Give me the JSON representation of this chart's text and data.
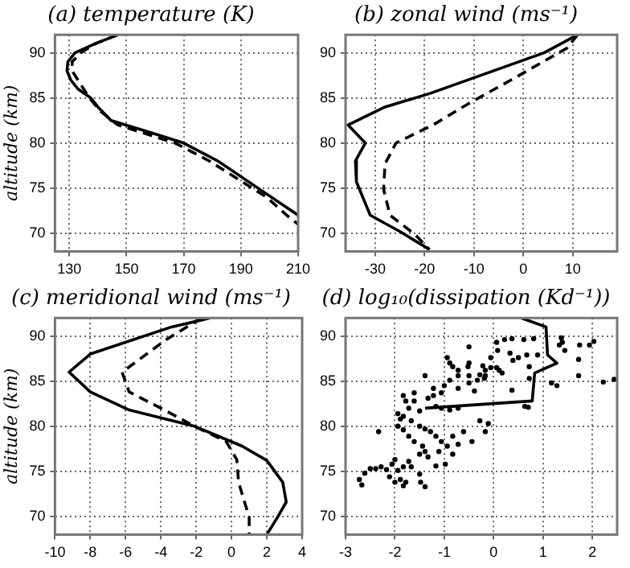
{
  "chart_data": [
    {
      "type": "line",
      "title": "(a) temperature (K)",
      "ylabel": "altitude (km)",
      "xlim": [
        125,
        210
      ],
      "xticks": [
        130,
        150,
        170,
        190,
        210
      ],
      "ylim": [
        68,
        92
      ],
      "yticks": [
        70,
        75,
        80,
        85,
        90
      ],
      "grid": true,
      "series": [
        {
          "type": "line",
          "color": "#000000",
          "line_style": "solid",
          "marker": "none",
          "x": [
            147,
            139,
            132,
            129.5,
            129.2,
            130.5,
            133,
            137.5,
            140,
            144.6,
            160,
            170,
            182,
            196,
            210
          ],
          "values": [
            92,
            91,
            90,
            89,
            88,
            87,
            86,
            85,
            84,
            82.5,
            81,
            80,
            78,
            75,
            72
          ]
        },
        {
          "type": "line",
          "color": "#000000",
          "line_style": "dashed",
          "marker": "none",
          "x": [
            147,
            139,
            134,
            131,
            131,
            133,
            135,
            137,
            141,
            147,
            167,
            179,
            189,
            199,
            206,
            210
          ],
          "values": [
            92,
            91,
            90,
            89,
            88,
            87,
            86,
            85,
            83.5,
            82,
            80,
            78,
            76,
            74,
            72,
            71
          ]
        }
      ]
    },
    {
      "type": "line",
      "title": "(b) zonal wind (ms⁻¹)",
      "xlim": [
        -36,
        19
      ],
      "xticks": [
        -30,
        -20,
        -10,
        0,
        10
      ],
      "ylim": [
        68,
        92
      ],
      "yticks": [
        70,
        75,
        80,
        85,
        90
      ],
      "grid": true,
      "series": [
        {
          "type": "line",
          "color": "#000000",
          "line_style": "solid",
          "marker": "none",
          "x": [
            11,
            4.2,
            -18.9,
            -28,
            -35.5,
            -32,
            -34,
            -33.8,
            -31,
            -25,
            -19
          ],
          "values": [
            92,
            90,
            85.5,
            84,
            82,
            80,
            78,
            75.7,
            72,
            70.2,
            68.2
          ]
        },
        {
          "type": "line",
          "color": "#000000",
          "line_style": "dashed",
          "marker": "none",
          "x": [
            11,
            8.8,
            -1.8,
            -11,
            -18.3,
            -25.8,
            -28,
            -28.3,
            -27,
            -22,
            -19
          ],
          "values": [
            92,
            90.5,
            87.2,
            84.4,
            82,
            80,
            77.7,
            74.9,
            72,
            69.9,
            68.2
          ]
        }
      ]
    },
    {
      "type": "line",
      "title": "(c) meridional wind (ms⁻¹)",
      "ylabel": "altitude (km)",
      "xlim": [
        -10,
        4
      ],
      "xticks": [
        -10,
        -8,
        -6,
        -4,
        -2,
        0,
        2,
        4
      ],
      "ylim": [
        68,
        92
      ],
      "yticks": [
        70,
        75,
        80,
        85,
        90
      ],
      "grid": true,
      "series": [
        {
          "type": "line",
          "color": "#000000",
          "line_style": "solid",
          "marker": "none",
          "x": [
            -1.2,
            -3.4,
            -8,
            -9.2,
            -8,
            -5.8,
            -2.1,
            0.6,
            2,
            2.9,
            3.1,
            2.6,
            2
          ],
          "values": [
            92,
            91,
            88,
            86,
            83.8,
            81.8,
            80,
            77.8,
            76.2,
            73.8,
            71.6,
            69.9,
            68
          ]
        },
        {
          "type": "line",
          "color": "#000000",
          "line_style": "dashed",
          "marker": "none",
          "x": [
            -1.7,
            -3.7,
            -6.2,
            -5.8,
            -4,
            -2.1,
            -0.3,
            0.3,
            0.4,
            1,
            1
          ],
          "values": [
            92,
            89.6,
            86,
            83.8,
            82,
            80,
            78.3,
            76.3,
            73.8,
            69.9,
            68
          ]
        }
      ]
    },
    {
      "type": "line",
      "title": "(d) log₁₀(dissipation (Kd⁻¹))",
      "xlim": [
        -3,
        2.5
      ],
      "xticks": [
        -3,
        -2,
        -1,
        0,
        1,
        2
      ],
      "ylim": [
        68,
        92
      ],
      "yticks": [
        70,
        75,
        80,
        85,
        90
      ],
      "grid": true,
      "series": [
        {
          "type": "scatter",
          "color": "#000000",
          "marker": "circle",
          "x": [
            0.06,
            0.22,
            0.37,
            0.61,
            0.81,
            1.37,
            1.39,
            1.44,
            1.33,
            1.74,
            1.94,
            2.03,
            1.72,
            1.72,
            1.17,
            1.28,
            2.22,
            2.44,
            0.67,
            0.5,
            0.39,
            0.89,
            0.33,
            0.08,
            -0.06,
            0.06,
            0.11,
            0.17,
            -0.06,
            -0.22,
            -0.17,
            -0.28,
            -0.19,
            -0.33,
            -0.5,
            -0.52,
            -0.5,
            -0.72,
            -0.72,
            -0.83,
            -0.72,
            -0.5,
            0.37,
            0.72,
            0.63,
            0.7,
            0.72,
            -1.06,
            -1.22,
            -1.22,
            -1.0,
            -0.89,
            -0.94,
            -0.89,
            -1.39,
            -1.61,
            -1.33,
            -1.17,
            -1.06,
            -0.89,
            -0.72,
            -1.72,
            -1.83,
            -1.78,
            -1.61,
            -1.5,
            -0.28,
            -0.11,
            -0.17,
            -0.44,
            -0.61,
            -0.83,
            -0.72,
            -0.83,
            -0.94,
            -1.06,
            -1.17,
            -1.28,
            -1.39,
            -1.5,
            -1.67,
            -1.83,
            -1.94,
            -1.89,
            -1.94,
            -1.83,
            -1.72,
            -1.61,
            -1.44,
            -1.39,
            -1.33,
            -1.5,
            -1.72,
            -1.67,
            -1.83,
            -2.0,
            -2.06,
            -1.94,
            -2.11,
            -1.89,
            -1.78,
            -1.5,
            -1.48,
            -1.39,
            -1.83,
            -2.0,
            -2.17,
            -2.28,
            -2.39,
            -2.5,
            -2.61,
            -2.72,
            -2.67,
            -1.17,
            -0.98,
            -1.11,
            -2.33,
            -0.5,
            -0.39,
            -0.17
          ],
          "values": [
            89.3,
            89.6,
            89.7,
            89.6,
            89.7,
            89.8,
            89.3,
            88.4,
            89.0,
            89.0,
            89.0,
            89.4,
            87.4,
            85.6,
            84.8,
            84.5,
            84.9,
            85.2,
            87.9,
            87.6,
            87.3,
            87.9,
            88.1,
            88.4,
            87.6,
            86.5,
            86.2,
            85.9,
            86.5,
            86.7,
            86.2,
            85.7,
            85.3,
            85.1,
            85.6,
            86.6,
            87.0,
            86.2,
            85.6,
            86.6,
            84.2,
            88.8,
            84.0,
            85.3,
            82.2,
            82.1,
            86.6,
            83.7,
            84.2,
            83.4,
            84.5,
            85.1,
            87.6,
            87.0,
            85.6,
            83.7,
            83.1,
            82.2,
            82.0,
            81.8,
            82.0,
            82.0,
            83.4,
            82.8,
            82.8,
            81.7,
            80.6,
            80.3,
            79.4,
            78.3,
            79.4,
            78.9,
            78.0,
            76.9,
            77.8,
            78.3,
            78.9,
            79.4,
            79.7,
            80.0,
            80.6,
            81.1,
            81.4,
            80.8,
            80.0,
            79.6,
            78.9,
            78.3,
            77.8,
            77.2,
            76.6,
            76.9,
            76.1,
            75.5,
            75.5,
            76.3,
            75.8,
            75.1,
            74.4,
            74.1,
            73.8,
            74.7,
            73.8,
            73.3,
            73.4,
            73.8,
            75.2,
            75.5,
            75.3,
            75.3,
            74.8,
            74.1,
            73.5,
            75.6,
            75.8,
            77.2,
            79.4,
            84.8,
            83.9,
            85.6
          ]
        },
        {
          "type": "line",
          "color": "#000000",
          "line_style": "solid",
          "marker": "none",
          "x": [
            0.56,
            1.06,
            1.09,
            1.28,
            0.83,
            0.78,
            -1.39
          ],
          "values": [
            92,
            91,
            87.9,
            87,
            85.9,
            82.8,
            82
          ]
        }
      ]
    }
  ]
}
